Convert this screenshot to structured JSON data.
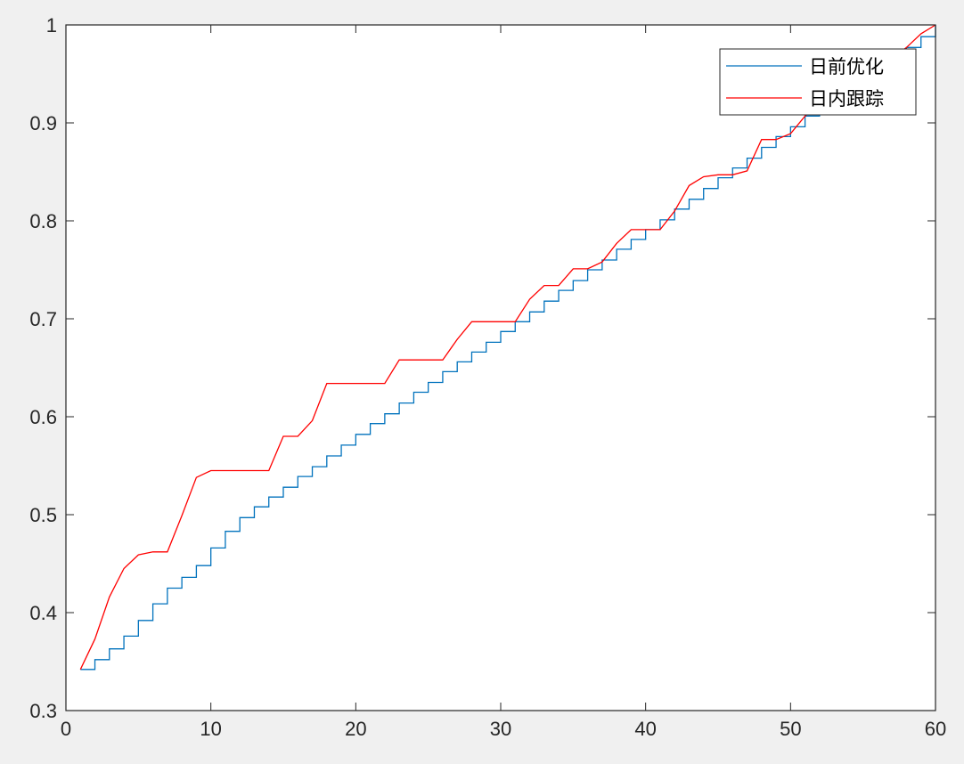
{
  "chart_data": {
    "type": "line",
    "title": "",
    "xlabel": "",
    "ylabel": "",
    "xlim": [
      0,
      60
    ],
    "ylim": [
      0.3,
      1
    ],
    "xticks": [
      "0",
      "10",
      "20",
      "30",
      "40",
      "50",
      "60"
    ],
    "yticks": [
      "0.3",
      "0.4",
      "0.5",
      "0.6",
      "0.7",
      "0.8",
      "0.9",
      "1"
    ],
    "grid": false,
    "legend_position": "top-right",
    "colors": {
      "background": "#f0f0f0",
      "plot_area": "#ffffff",
      "axis": "#262626"
    },
    "series": [
      {
        "name": "日前优化",
        "style": "stairs",
        "color": "#0072bd",
        "x": [
          1,
          2,
          3,
          4,
          5,
          6,
          7,
          8,
          9,
          10,
          11,
          12,
          13,
          14,
          15,
          16,
          17,
          18,
          19,
          20,
          21,
          22,
          23,
          24,
          25,
          26,
          27,
          28,
          29,
          30,
          31,
          32,
          33,
          34,
          35,
          36,
          37,
          38,
          39,
          40,
          41,
          42,
          43,
          44,
          45,
          46,
          47,
          48,
          49,
          50,
          51,
          52,
          53,
          54,
          55,
          56,
          57,
          58,
          59,
          60
        ],
        "y": [
          0.342,
          0.352,
          0.363,
          0.376,
          0.392,
          0.409,
          0.425,
          0.436,
          0.448,
          0.466,
          0.483,
          0.497,
          0.508,
          0.518,
          0.528,
          0.539,
          0.549,
          0.56,
          0.571,
          0.582,
          0.593,
          0.603,
          0.614,
          0.625,
          0.635,
          0.646,
          0.656,
          0.666,
          0.676,
          0.687,
          0.697,
          0.707,
          0.718,
          0.729,
          0.739,
          0.75,
          0.76,
          0.771,
          0.781,
          0.791,
          0.801,
          0.812,
          0.822,
          0.833,
          0.844,
          0.854,
          0.864,
          0.875,
          0.886,
          0.896,
          0.907,
          0.918,
          0.928,
          0.939,
          0.948,
          0.957,
          0.966,
          0.977,
          0.988,
          1.0
        ]
      },
      {
        "name": "日内跟踪",
        "style": "line",
        "color": "#ff0000",
        "x": [
          1,
          2,
          3,
          4,
          5,
          6,
          7,
          8,
          9,
          10,
          11,
          12,
          13,
          14,
          15,
          16,
          17,
          18,
          19,
          20,
          21,
          22,
          23,
          24,
          25,
          26,
          27,
          28,
          29,
          30,
          31,
          32,
          33,
          34,
          35,
          36,
          37,
          38,
          39,
          40,
          41,
          42,
          43,
          44,
          45,
          46,
          47,
          48,
          49,
          50,
          51,
          52,
          53,
          54,
          55,
          56,
          57,
          58,
          59,
          60
        ],
        "y": [
          0.342,
          0.373,
          0.416,
          0.445,
          0.459,
          0.462,
          0.462,
          0.499,
          0.538,
          0.545,
          0.545,
          0.545,
          0.545,
          0.545,
          0.58,
          0.58,
          0.596,
          0.634,
          0.634,
          0.634,
          0.634,
          0.634,
          0.658,
          0.658,
          0.658,
          0.658,
          0.679,
          0.697,
          0.697,
          0.697,
          0.697,
          0.72,
          0.734,
          0.734,
          0.751,
          0.751,
          0.758,
          0.777,
          0.791,
          0.791,
          0.791,
          0.81,
          0.836,
          0.845,
          0.847,
          0.847,
          0.851,
          0.883,
          0.883,
          0.889,
          0.907,
          0.918,
          0.928,
          0.939,
          0.948,
          0.957,
          0.966,
          0.977,
          0.991,
          1.0
        ]
      }
    ]
  }
}
